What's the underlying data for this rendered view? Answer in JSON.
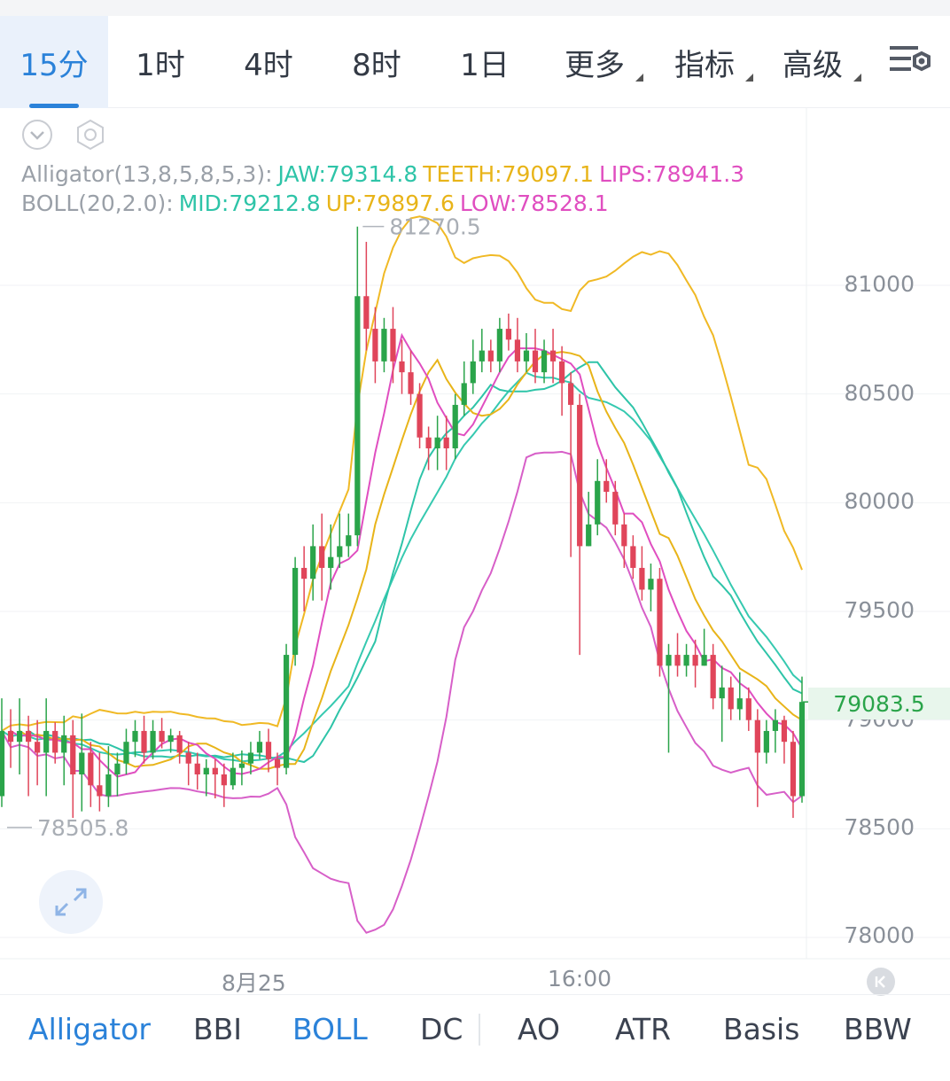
{
  "timeframes": [
    "15分",
    "1时",
    "4时",
    "8时",
    "1日"
  ],
  "menus": [
    "更多",
    "指标",
    "高级"
  ],
  "active_timeframe": "15分",
  "legend": {
    "alligator_label": "Alligator(13,8,5,8,5,3):",
    "jaw": "JAW:79314.8",
    "teeth": "TEETH:79097.1",
    "lips": "LIPS:78941.3",
    "boll_label": "BOLL(20,2.0):",
    "mid": "MID:79212.8",
    "up": "UP:79897.6",
    "low": "LOW:78528.1"
  },
  "price_axis": [
    "81000",
    "80500",
    "80000",
    "79500",
    "79000",
    "78500",
    "78000"
  ],
  "last_price": "79083.5",
  "x_labels": [
    "8月25",
    "16:00"
  ],
  "bottom_indicators": [
    "Alligator",
    "BBI",
    "BOLL",
    "DC",
    "AO",
    "ATR",
    "Basis",
    "BBW"
  ],
  "active_indicators": [
    "Alligator",
    "BOLL"
  ],
  "colors": {
    "accent": "#2b82d9",
    "up_candle": "#2aa44a",
    "down_candle": "#e0455a",
    "jaw": "#2ec4a8",
    "teeth": "#e8b419",
    "lips": "#e04ec0",
    "boll_mid": "#36c9b0",
    "boll_band": "#f0b925",
    "boll_low": "#d75fc8"
  },
  "chart_data": {
    "type": "candlestick",
    "x_labels": [
      "8月25",
      "16:00"
    ],
    "ylim": [
      78000,
      81350
    ],
    "yticks": [
      81000,
      80500,
      80000,
      79500,
      79000,
      78500,
      78000
    ],
    "max_marker": 81270.5,
    "min_marker": 78505.8,
    "last_price": 79083.5,
    "candles": [
      [
        78650,
        78950,
        79100,
        78600
      ],
      [
        78950,
        78900,
        79050,
        78780
      ],
      [
        78900,
        78950,
        79100,
        78750
      ],
      [
        78950,
        78900,
        79020,
        78650
      ],
      [
        78900,
        78850,
        79000,
        78700
      ],
      [
        78850,
        78950,
        79100,
        78650
      ],
      [
        78950,
        78850,
        78990,
        78800
      ],
      [
        78850,
        78930,
        79020,
        78700
      ],
      [
        78930,
        78750,
        79000,
        78550
      ],
      [
        78750,
        78850,
        79030,
        78580
      ],
      [
        78850,
        78700,
        78900,
        78600
      ],
      [
        78700,
        78650,
        78850,
        78580
      ],
      [
        78650,
        78750,
        78880,
        78600
      ],
      [
        78750,
        78800,
        78850,
        78650
      ],
      [
        78800,
        78900,
        78960,
        78750
      ],
      [
        78900,
        78950,
        79000,
        78830
      ],
      [
        78950,
        78850,
        79020,
        78800
      ],
      [
        78850,
        78950,
        79000,
        78820
      ],
      [
        78950,
        78900,
        79010,
        78870
      ],
      [
        78900,
        78930,
        78960,
        78850
      ],
      [
        78930,
        78850,
        78950,
        78800
      ],
      [
        78850,
        78800,
        78900,
        78700
      ],
      [
        78800,
        78750,
        78850,
        78680
      ],
      [
        78750,
        78780,
        78820,
        78650
      ],
      [
        78780,
        78750,
        78820,
        78640
      ],
      [
        78750,
        78700,
        78800,
        78600
      ],
      [
        78700,
        78780,
        78850,
        78680
      ],
      [
        78780,
        78800,
        78860,
        78700
      ],
      [
        78800,
        78850,
        78900,
        78750
      ],
      [
        78850,
        78900,
        78950,
        78820
      ],
      [
        78900,
        78820,
        78960,
        78760
      ],
      [
        78820,
        78780,
        78850,
        78700
      ],
      [
        78780,
        79300,
        79350,
        78750
      ],
      [
        79300,
        79700,
        79750,
        79250
      ],
      [
        79700,
        79650,
        79800,
        79500
      ],
      [
        79650,
        79800,
        79900,
        79550
      ],
      [
        79800,
        79700,
        79950,
        79550
      ],
      [
        79700,
        79750,
        79900,
        79600
      ],
      [
        79750,
        79800,
        79950,
        79700
      ],
      [
        79800,
        79850,
        79950,
        79750
      ],
      [
        79850,
        80950,
        81270,
        79800
      ],
      [
        80950,
        80800,
        81200,
        80700
      ],
      [
        80800,
        80650,
        80900,
        80550
      ],
      [
        80650,
        80800,
        80850,
        80600
      ],
      [
        80800,
        80650,
        80900,
        80550
      ],
      [
        80650,
        80600,
        80750,
        80500
      ],
      [
        80600,
        80500,
        80700,
        80450
      ],
      [
        80500,
        80300,
        80550,
        80250
      ],
      [
        80300,
        80250,
        80350,
        80150
      ],
      [
        80250,
        80300,
        80400,
        80150
      ],
      [
        80300,
        80250,
        80400,
        80150
      ],
      [
        80250,
        80450,
        80500,
        80200
      ],
      [
        80450,
        80550,
        80650,
        80400
      ],
      [
        80550,
        80650,
        80750,
        80500
      ],
      [
        80650,
        80700,
        80800,
        80600
      ],
      [
        80700,
        80650,
        80750,
        80600
      ],
      [
        80650,
        80800,
        80850,
        80600
      ],
      [
        80800,
        80750,
        80870,
        80700
      ],
      [
        80750,
        80650,
        80850,
        80600
      ],
      [
        80650,
        80700,
        80780,
        80600
      ],
      [
        80700,
        80600,
        80800,
        80550
      ],
      [
        80600,
        80700,
        80750,
        80550
      ],
      [
        80700,
        80650,
        80800,
        80550
      ],
      [
        80650,
        80550,
        80720,
        80400
      ],
      [
        80550,
        80450,
        80600,
        79750
      ],
      [
        80450,
        79800,
        80500,
        79300
      ],
      [
        79800,
        79900,
        80050,
        79800
      ],
      [
        79900,
        80100,
        80200,
        79850
      ],
      [
        80100,
        80050,
        80200,
        80000
      ],
      [
        80050,
        79900,
        80100,
        79850
      ],
      [
        79900,
        79800,
        79950,
        79700
      ],
      [
        79800,
        79700,
        79850,
        79650
      ],
      [
        79700,
        79600,
        79800,
        79550
      ],
      [
        79600,
        79650,
        79720,
        79500
      ],
      [
        79650,
        79250,
        79700,
        79200
      ],
      [
        79250,
        79300,
        79350,
        78850
      ],
      [
        79300,
        79250,
        79400,
        79200
      ],
      [
        79250,
        79300,
        79350,
        79200
      ],
      [
        79300,
        79250,
        79370,
        79150
      ],
      [
        79250,
        79300,
        79420,
        79250
      ],
      [
        79300,
        79100,
        79350,
        79050
      ],
      [
        79100,
        79150,
        79250,
        78900
      ],
      [
        79150,
        79050,
        79200,
        79000
      ],
      [
        79050,
        79100,
        79220,
        79000
      ],
      [
        79100,
        79000,
        79150,
        78950
      ],
      [
        79000,
        78850,
        79050,
        78600
      ],
      [
        78850,
        78950,
        79000,
        78800
      ],
      [
        78950,
        79000,
        79050,
        78850
      ],
      [
        79000,
        78900,
        79020,
        78800
      ],
      [
        78900,
        78650,
        78950,
        78550
      ],
      [
        78650,
        79083.5,
        79200,
        78620
      ]
    ],
    "series": [
      {
        "name": "JAW",
        "last": 79314.8
      },
      {
        "name": "TEETH",
        "last": 79097.1
      },
      {
        "name": "LIPS",
        "last": 78941.3
      },
      {
        "name": "MID",
        "last": 79212.8
      },
      {
        "name": "UP",
        "last": 79897.6
      },
      {
        "name": "LOW",
        "last": 78528.1
      }
    ]
  }
}
